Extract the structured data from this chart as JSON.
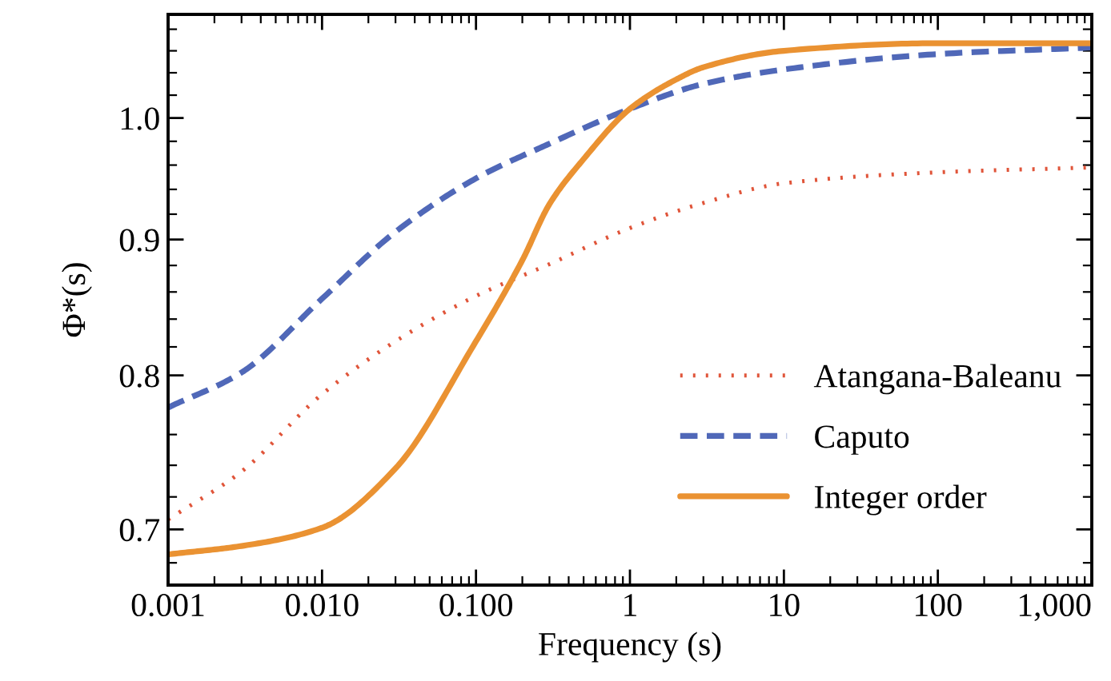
{
  "chart_data": {
    "type": "line",
    "xlabel": "Frequency (s)",
    "ylabel": "Φ*(s)",
    "log": "xy",
    "x": [
      0.001,
      0.003,
      0.01,
      0.03,
      0.1,
      0.2,
      0.3,
      0.5,
      1,
      2,
      3,
      10,
      100,
      1000
    ],
    "series": [
      {
        "name": "Atangana-Baleanu",
        "color": "#e0553a",
        "line_style": "dotted",
        "x": [
          0.001,
          0.003,
          0.01,
          0.03,
          0.1,
          0.3,
          1,
          3,
          10,
          100,
          1000
        ],
        "values": [
          0.706,
          0.736,
          0.787,
          0.824,
          0.857,
          0.881,
          0.909,
          0.929,
          0.945,
          0.954,
          0.958
        ]
      },
      {
        "name": "Caputo",
        "color": "#5068b8",
        "line_style": "dashed",
        "x": [
          0.001,
          0.003,
          0.01,
          0.03,
          0.1,
          0.3,
          1,
          3,
          10,
          100,
          1000
        ],
        "values": [
          0.778,
          0.802,
          0.855,
          0.906,
          0.949,
          0.978,
          1.008,
          1.03,
          1.043,
          1.057,
          1.063
        ]
      },
      {
        "name": "Integer order",
        "color": "#ea9232",
        "line_style": "solid",
        "values": [
          0.685,
          0.69,
          0.701,
          0.738,
          0.824,
          0.884,
          0.928,
          0.965,
          1.008,
          1.034,
          1.045,
          1.06,
          1.067,
          1.067
        ]
      }
    ],
    "xlim": [
      0.001,
      1000
    ],
    "ylim": [
      0.667,
      1.094
    ],
    "xticks": [
      0.001,
      {
        "value": 0.01,
        "label": "0.010"
      },
      {
        "value": 0.1,
        "label": "0.100"
      },
      1,
      10,
      100,
      {
        "value": 1000,
        "label": "1,000"
      }
    ],
    "yticks": [
      0.7,
      0.8,
      0.9,
      {
        "value": 1.0,
        "label": "1.0"
      }
    ],
    "legend": "bottom right",
    "grid": false
  }
}
